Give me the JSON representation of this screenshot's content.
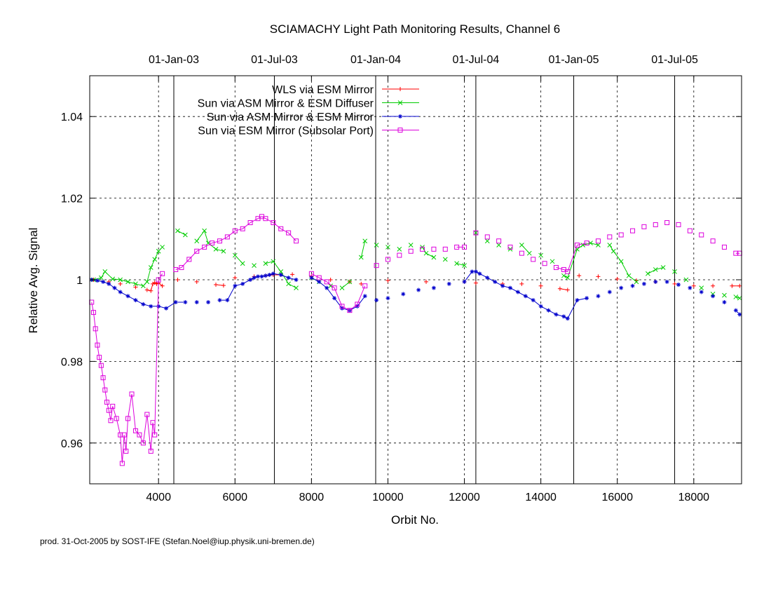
{
  "chart_data": {
    "type": "line",
    "title": "SCIAMACHY Light Path Monitoring Results, Channel 6",
    "xlabel": "Orbit No.",
    "ylabel": "Relative Avg. Signal",
    "xlim": [
      2200,
      19250
    ],
    "ylim": [
      0.95,
      1.05
    ],
    "x_ticks": [
      4000,
      6000,
      8000,
      10000,
      12000,
      14000,
      16000,
      18000
    ],
    "x_tick_labels": [
      "4000",
      "6000",
      "8000",
      "10000",
      "12000",
      "14000",
      "16000",
      "18000"
    ],
    "y_ticks": [
      0.96,
      0.98,
      1.0,
      1.02,
      1.04
    ],
    "y_tick_labels": [
      "0.96",
      "0.98",
      "1",
      "1.02",
      "1.04"
    ],
    "top_axis": {
      "ticks": [
        4400,
        7030,
        9680,
        12300,
        14860,
        17500
      ],
      "labels": [
        "01-Jan-03",
        "01-Jul-03",
        "01-Jan-04",
        "01-Jul-04",
        "01-Jan-05",
        "01-Jul-05"
      ]
    },
    "grid": true,
    "legend_position": "top-center",
    "footer": "prod. 31-Oct-2005 by SOST-IFE (Stefan.Noel@iup.physik.uni-bremen.de)",
    "series": [
      {
        "name": "WLS via ESM Mirror",
        "color": "#ff0000",
        "marker": "plus",
        "x": [
          2300,
          2700,
          3000,
          3400,
          3700,
          3800,
          3850,
          3900,
          3950,
          4000,
          4100,
          4500,
          5000,
          5500,
          5700,
          6000,
          6500,
          6800,
          7000,
          7200,
          7500,
          8000,
          8500,
          9000,
          9300,
          10000,
          11000,
          12000,
          12300,
          13000,
          13500,
          14000,
          14500,
          14700,
          15000,
          15500,
          16000,
          16500,
          17000,
          17500,
          18000,
          18500,
          19000,
          19200
        ],
        "y": [
          1.0,
          0.9995,
          0.999,
          0.9982,
          0.9975,
          0.9973,
          0.999,
          0.9993,
          0.999,
          0.9992,
          0.9985,
          1.0,
          0.9995,
          0.9988,
          0.9986,
          1.0005,
          1.0008,
          1.001,
          1.0012,
          1.0012,
          1.0013,
          1.0008,
          1.0,
          0.9995,
          0.999,
          0.9998,
          0.9995,
          0.9995,
          0.9992,
          0.999,
          0.999,
          0.9985,
          0.9978,
          0.9975,
          1.001,
          1.0008,
          1.0002,
          0.9998,
          0.9995,
          0.999,
          0.9985,
          0.9985,
          0.9985,
          0.9985
        ]
      },
      {
        "name": "Sun via ASM Mirror & ESM Diffuser",
        "color": "#00cc00",
        "marker": "cross",
        "x": [
          2300,
          2500,
          2600,
          2800,
          3000,
          3200,
          3400,
          3600,
          3700,
          3800,
          3900,
          4000,
          4100,
          4500,
          4700,
          5000,
          5200,
          5300,
          5500,
          5700,
          6000,
          6200,
          6500,
          6800,
          7000,
          7200,
          7400,
          7600,
          8000,
          8200,
          8500,
          8800,
          9000,
          9300,
          9400,
          9700,
          10000,
          10300,
          10600,
          10900,
          11000,
          11200,
          11500,
          11800,
          12000,
          12300,
          12600,
          12900,
          13200,
          13500,
          13700,
          14000,
          14300,
          14600,
          14700,
          14950,
          15100,
          15300,
          15500,
          15800,
          15900,
          16100,
          16300,
          16500,
          16800,
          17000,
          17200,
          17500,
          17800,
          18200,
          18500,
          18800,
          19100,
          19200
        ],
        "y": [
          1.0,
          1.0005,
          1.002,
          1.0002,
          1.0,
          0.9995,
          0.999,
          0.9985,
          0.9995,
          1.003,
          1.005,
          1.007,
          1.008,
          1.012,
          1.011,
          1.0095,
          1.012,
          1.009,
          1.0075,
          1.007,
          1.006,
          1.004,
          1.0035,
          1.004,
          1.0045,
          1.002,
          0.999,
          0.998,
          1.0005,
          0.9995,
          0.9985,
          0.998,
          0.9995,
          1.0055,
          1.0095,
          1.0085,
          1.008,
          1.0075,
          1.0085,
          1.008,
          1.0065,
          1.0055,
          1.005,
          1.004,
          1.0035,
          1.0115,
          1.0095,
          1.0085,
          1.0075,
          1.0085,
          1.0065,
          1.006,
          1.0045,
          1.001,
          1.0005,
          1.0075,
          1.0085,
          1.009,
          1.0085,
          1.0085,
          1.007,
          1.0045,
          1.001,
          0.9995,
          1.0015,
          1.0025,
          1.003,
          1.002,
          1.0,
          0.998,
          0.9965,
          0.9962,
          0.9958,
          0.9955
        ]
      },
      {
        "name": "Sun via ASM Mirror & ESM Mirror",
        "color": "#0000cc",
        "marker": "star",
        "x": [
          2250,
          2400,
          2550,
          2700,
          2850,
          3000,
          3200,
          3400,
          3600,
          3800,
          4000,
          4200,
          4450,
          4700,
          5000,
          5300,
          5600,
          5800,
          6000,
          6200,
          6400,
          6500,
          6600,
          6700,
          6800,
          6900,
          7000,
          7200,
          7400,
          7600,
          8000,
          8200,
          8400,
          8600,
          8800,
          9000,
          9200,
          9400,
          9700,
          10000,
          10400,
          10800,
          11200,
          11600,
          12000,
          12200,
          12300,
          12400,
          12600,
          12800,
          13000,
          13200,
          13400,
          13600,
          13800,
          14000,
          14200,
          14400,
          14600,
          14700,
          14950,
          15200,
          15500,
          15800,
          16100,
          16400,
          16700,
          17000,
          17300,
          17600,
          17900,
          18200,
          18500,
          18800,
          19100,
          19200
        ],
        "y": [
          1.0,
          0.9998,
          0.9995,
          0.999,
          0.998,
          0.997,
          0.996,
          0.995,
          0.994,
          0.9935,
          0.9935,
          0.993,
          0.9945,
          0.9945,
          0.9945,
          0.9945,
          0.995,
          0.995,
          0.9985,
          0.999,
          1.0,
          1.0005,
          1.0008,
          1.0008,
          1.001,
          1.0012,
          1.0015,
          1.0012,
          1.0005,
          1.0,
          1.0005,
          0.9995,
          0.998,
          0.9955,
          0.993,
          0.9925,
          0.9935,
          0.996,
          0.995,
          0.9955,
          0.9965,
          0.9975,
          0.998,
          0.999,
          0.9995,
          1.002,
          1.002,
          1.0015,
          1.0005,
          0.9995,
          0.9985,
          0.998,
          0.997,
          0.996,
          0.995,
          0.9935,
          0.9925,
          0.9915,
          0.991,
          0.9905,
          0.995,
          0.9955,
          0.996,
          0.997,
          0.998,
          0.9985,
          0.999,
          0.9995,
          0.9995,
          0.9988,
          0.998,
          0.997,
          0.996,
          0.9945,
          0.9925,
          0.9915
        ]
      },
      {
        "name": "Sun via ESM Mirror (Subsolar Port)",
        "color": "#dd00dd",
        "marker": "square",
        "x": [
          2250,
          2300,
          2350,
          2400,
          2450,
          2500,
          2550,
          2600,
          2650,
          2700,
          2750,
          2800,
          2900,
          3000,
          3050,
          3100,
          3150,
          3200,
          3300,
          3400,
          3500,
          3600,
          3700,
          3800,
          3850,
          3900,
          4000,
          4100,
          4450,
          4600,
          4800,
          5000,
          5200,
          5400,
          5600,
          5800,
          6000,
          6200,
          6400,
          6600,
          6700,
          6800,
          7000,
          7200,
          7400,
          7600,
          8000,
          8200,
          8400,
          8600,
          8800,
          9000,
          9200,
          9400,
          9700,
          10000,
          10300,
          10600,
          10900,
          11200,
          11500,
          11800,
          12000,
          12300,
          12600,
          12900,
          13200,
          13500,
          13800,
          14100,
          14400,
          14600,
          14700,
          14950,
          15200,
          15500,
          15800,
          16100,
          16400,
          16700,
          17000,
          17300,
          17600,
          17900,
          18200,
          18500,
          18800,
          19100,
          19200
        ],
        "y": [
          0.9945,
          0.992,
          0.988,
          0.984,
          0.981,
          0.979,
          0.976,
          0.973,
          0.97,
          0.968,
          0.9655,
          0.969,
          0.966,
          0.962,
          0.955,
          0.962,
          0.958,
          0.966,
          0.972,
          0.963,
          0.962,
          0.96,
          0.967,
          0.958,
          0.965,
          0.962,
          1.0,
          1.0015,
          1.0025,
          1.003,
          1.005,
          1.007,
          1.008,
          1.009,
          1.0095,
          1.0105,
          1.012,
          1.0125,
          1.014,
          1.015,
          1.0155,
          1.015,
          1.014,
          1.0125,
          1.0115,
          1.0095,
          1.0015,
          1.0005,
          0.9995,
          0.998,
          0.9935,
          0.9925,
          0.994,
          0.9985,
          1.0035,
          1.005,
          1.006,
          1.007,
          1.0075,
          1.0075,
          1.0075,
          1.008,
          1.008,
          1.0115,
          1.0105,
          1.0095,
          1.008,
          1.0065,
          1.005,
          1.004,
          1.003,
          1.0025,
          1.002,
          1.0085,
          1.009,
          1.0095,
          1.0105,
          1.011,
          1.012,
          1.013,
          1.0135,
          1.014,
          1.0135,
          1.012,
          1.011,
          1.0095,
          1.008,
          1.0065,
          1.0065
        ]
      }
    ]
  }
}
